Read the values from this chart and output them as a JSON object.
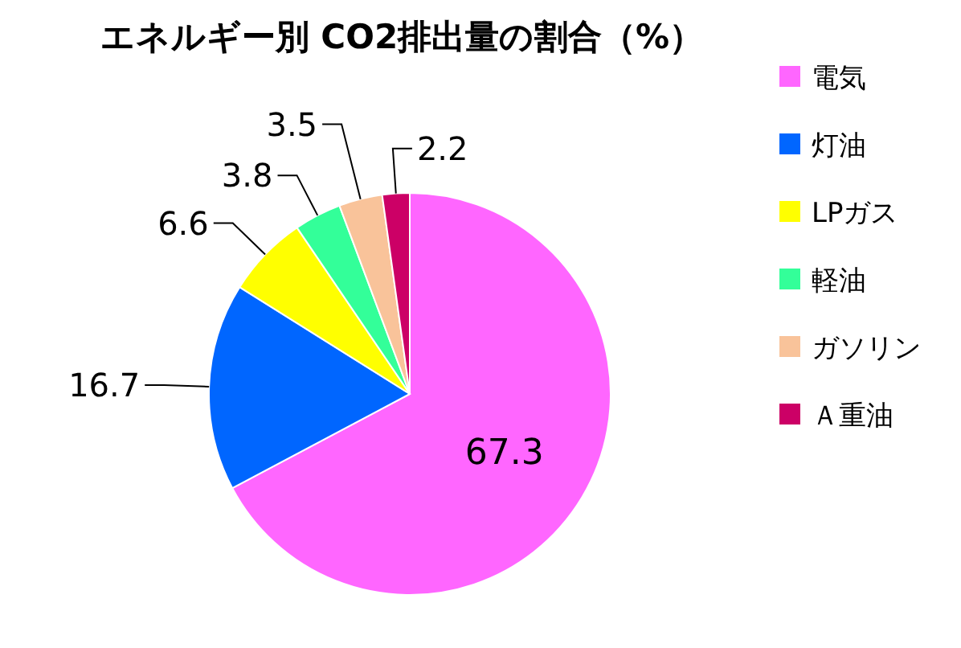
{
  "chart_data": {
    "type": "pie",
    "title": "エネルギー別  CO2排出量の割合（%）",
    "categories": [
      "電気",
      "灯油",
      "LPガス",
      "軽油",
      "ガソリン",
      "Ａ重油"
    ],
    "values": [
      67.3,
      16.7,
      6.6,
      3.8,
      3.5,
      2.2
    ],
    "colors": [
      "#ff66ff",
      "#0066ff",
      "#ffff00",
      "#33ff99",
      "#f9c39a",
      "#cc0066"
    ],
    "legend": "right",
    "data_labels": true
  }
}
